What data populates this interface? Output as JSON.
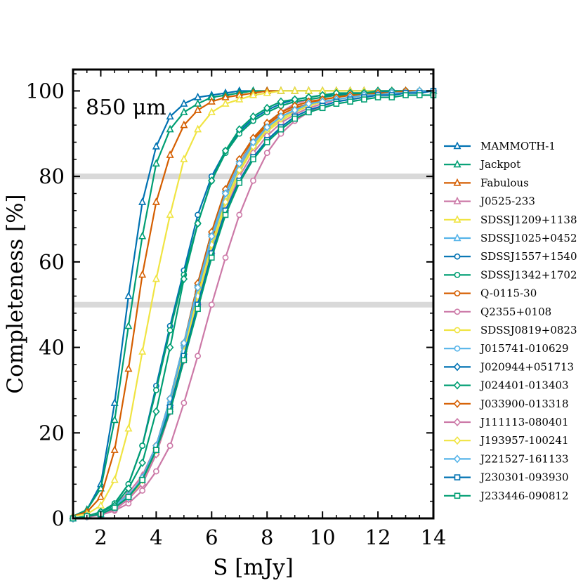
{
  "chart_data": {
    "type": "line",
    "title": "",
    "annotation": "850 μm",
    "xlabel": "S [mJy]",
    "ylabel": "Completeness [%]",
    "xlim": [
      1,
      14
    ],
    "ylim": [
      0,
      105
    ],
    "xticks": [
      2,
      4,
      6,
      8,
      10,
      12,
      14
    ],
    "yticks": [
      0,
      20,
      40,
      60,
      80,
      100
    ],
    "reference_lines_y": [
      50,
      80
    ],
    "legend_position": "right, outside",
    "x": [
      1.0,
      1.5,
      2.0,
      2.5,
      3.0,
      3.5,
      4.0,
      4.5,
      5.0,
      5.5,
      6.0,
      6.5,
      7.0,
      7.5,
      8.0,
      8.5,
      9.0,
      9.5,
      10.0,
      10.5,
      11.0,
      11.5,
      12.0,
      12.5,
      13.0,
      13.5,
      14.0
    ],
    "series": [
      {
        "name": "MAMMOTH-1",
        "color": "#0072B2",
        "marker": "triangle",
        "values": [
          0.5,
          2,
          8,
          27,
          52,
          74,
          87,
          94,
          97,
          98.5,
          99,
          99.5,
          100,
          100,
          100,
          100,
          100,
          100,
          100,
          100,
          100,
          100,
          100,
          100,
          100,
          100,
          100
        ]
      },
      {
        "name": "Jackpot",
        "color": "#009E73",
        "marker": "triangle",
        "values": [
          0.5,
          2,
          7,
          23,
          45,
          66,
          83,
          91,
          95,
          97,
          98.5,
          99,
          99.5,
          100,
          100,
          100,
          100,
          100,
          100,
          100,
          100,
          100,
          100,
          100,
          100,
          100,
          100
        ]
      },
      {
        "name": "Fabulous",
        "color": "#D55E00",
        "marker": "triangle",
        "values": [
          0.5,
          1.5,
          5,
          16,
          35,
          57,
          74,
          85,
          92,
          95.5,
          97.5,
          98.5,
          99,
          99.5,
          100,
          100,
          100,
          100,
          100,
          100,
          100,
          100,
          100,
          100,
          100,
          100,
          100
        ]
      },
      {
        "name": "J0525-233",
        "color": "#CC79A7",
        "marker": "triangle",
        "values": [
          0,
          0.5,
          1.5,
          3,
          6,
          10,
          17,
          27,
          39,
          52,
          64,
          74,
          82,
          88,
          92,
          95,
          97,
          98,
          98.5,
          99,
          99.5,
          99.5,
          100,
          100,
          100,
          100,
          100
        ]
      },
      {
        "name": "SDSSJ1209+1138",
        "color": "#F0E442",
        "marker": "triangle",
        "values": [
          0.5,
          1,
          3,
          9,
          21,
          39,
          56,
          71,
          84,
          91,
          95,
          97,
          98,
          99,
          99.5,
          100,
          100,
          100,
          100,
          100,
          100,
          100,
          100,
          100,
          100,
          100,
          100
        ]
      },
      {
        "name": "SDSSJ1025+0452",
        "color": "#56B4E9",
        "marker": "triangle",
        "values": [
          0,
          0.5,
          1,
          3,
          5.5,
          9,
          16,
          27,
          41,
          55,
          67,
          77,
          84,
          89,
          92.5,
          95,
          96.5,
          97.5,
          98,
          98.5,
          99,
          99,
          99.5,
          99.5,
          99.5,
          100,
          100
        ]
      },
      {
        "name": "SDSSJ1557+1540",
        "color": "#0072B2",
        "marker": "circle",
        "values": [
          0,
          0.5,
          1.5,
          3.5,
          8,
          17,
          31,
          45,
          58,
          71,
          80,
          86,
          90.5,
          93.5,
          95.5,
          97,
          98,
          98.5,
          99,
          99,
          99.5,
          99.5,
          99.5,
          100,
          100,
          100,
          100
        ]
      },
      {
        "name": "SDSSJ1342+1702",
        "color": "#009E73",
        "marker": "circle",
        "values": [
          0,
          0.5,
          1.5,
          3.5,
          8,
          17,
          30,
          44,
          57,
          69,
          79,
          85.5,
          90,
          93,
          95,
          96.5,
          97.5,
          98,
          98.5,
          99,
          99,
          99.5,
          99.5,
          99.5,
          100,
          100,
          100
        ]
      },
      {
        "name": "Q-0115-30",
        "color": "#D55E00",
        "marker": "circle",
        "values": [
          0,
          0.5,
          1,
          2.5,
          5,
          9,
          17,
          28,
          41,
          54,
          66,
          76,
          83,
          88.5,
          92,
          94.5,
          96,
          97,
          98,
          98.5,
          99,
          99,
          99.5,
          99.5,
          99.5,
          100,
          100
        ]
      },
      {
        "name": "Q2355+0108",
        "color": "#CC79A7",
        "marker": "circle",
        "values": [
          0,
          0.3,
          0.8,
          1.8,
          3.5,
          6.5,
          11,
          17,
          27,
          38,
          50,
          61,
          71,
          79,
          85.5,
          90,
          93,
          95,
          96.5,
          97.5,
          98,
          98.5,
          99,
          99,
          99.5,
          99.5,
          100
        ]
      },
      {
        "name": "SDSSJ0819+0823",
        "color": "#F0E442",
        "marker": "circle",
        "values": [
          0,
          0.5,
          1,
          2.5,
          5,
          8.5,
          15,
          25,
          38,
          51,
          63,
          73,
          81,
          86.5,
          90.5,
          93,
          95,
          96.5,
          97.5,
          98,
          98.5,
          99,
          99,
          99.5,
          99.5,
          100,
          100
        ]
      },
      {
        "name": "J015741-010629",
        "color": "#56B4E9",
        "marker": "circle",
        "values": [
          0,
          0.5,
          1,
          2.5,
          5,
          9,
          16,
          27,
          40,
          53,
          65,
          75,
          82,
          87.5,
          91,
          93.5,
          95.5,
          97,
          97.5,
          98,
          98.5,
          99,
          99,
          99.5,
          99.5,
          100,
          100
        ]
      },
      {
        "name": "J020944+051713",
        "color": "#0072B2",
        "marker": "diamond",
        "values": [
          0,
          0.5,
          1,
          2.5,
          5,
          9,
          16,
          26,
          39,
          52,
          64,
          74,
          81.5,
          87,
          91,
          93.5,
          95.5,
          96.5,
          97.5,
          98,
          98.5,
          99,
          99,
          99.5,
          99.5,
          100,
          100
        ]
      },
      {
        "name": "J024401-013403",
        "color": "#009E73",
        "marker": "diamond",
        "values": [
          0,
          0.5,
          1.5,
          3,
          7,
          13,
          25,
          40,
          56,
          69,
          79,
          86,
          91,
          94,
          96,
          97.5,
          98,
          98.5,
          99,
          99.5,
          99.5,
          99.5,
          100,
          100,
          100,
          100,
          100
        ]
      },
      {
        "name": "J033900-013318",
        "color": "#D55E00",
        "marker": "diamond",
        "values": [
          0,
          0.5,
          1,
          2.5,
          5,
          9.5,
          17,
          28,
          41,
          55,
          67,
          77,
          84,
          89,
          92.5,
          95,
          96.5,
          97.5,
          98,
          98.5,
          99,
          99,
          99.5,
          99.5,
          100,
          100,
          100
        ]
      },
      {
        "name": "J111113-080401",
        "color": "#CC79A7",
        "marker": "diamond",
        "values": [
          0,
          0.5,
          1,
          2,
          4.5,
          8,
          15,
          25,
          37,
          50,
          62,
          72,
          80,
          85.5,
          89.5,
          92.5,
          94.5,
          96,
          97,
          98,
          98.5,
          99,
          99,
          99.5,
          99.5,
          100,
          100
        ]
      },
      {
        "name": "J193957-100241",
        "color": "#F0E442",
        "marker": "diamond",
        "values": [
          0,
          0.5,
          1,
          2.5,
          5,
          9,
          16,
          26,
          39,
          52,
          64,
          74,
          81.5,
          87,
          91,
          93.5,
          95.5,
          96.5,
          97.5,
          98,
          98.5,
          99,
          99,
          99.5,
          99.5,
          100,
          100
        ]
      },
      {
        "name": "J221527-161133",
        "color": "#56B4E9",
        "marker": "diamond",
        "values": [
          0,
          0.5,
          1,
          2.5,
          5,
          9.5,
          17,
          28,
          41,
          54,
          66,
          76,
          83,
          88,
          91.5,
          94,
          95.5,
          97,
          97.5,
          98,
          98.5,
          99,
          99,
          99.5,
          99.5,
          100,
          100
        ]
      },
      {
        "name": "J230301-093930",
        "color": "#0072B2",
        "marker": "square",
        "values": [
          0,
          0.5,
          1,
          2.5,
          5,
          9,
          16,
          26,
          38,
          50,
          62,
          72,
          79,
          84.5,
          88.5,
          91.5,
          94,
          95.5,
          96.5,
          97.5,
          98,
          98.5,
          99,
          99,
          99.5,
          99.5,
          100
        ]
      },
      {
        "name": "J233446-090812",
        "color": "#009E73",
        "marker": "square",
        "values": [
          0,
          0.5,
          1,
          2.5,
          5,
          9,
          16,
          25,
          37,
          49,
          61,
          71,
          78.5,
          84,
          88,
          91,
          93.5,
          95,
          96,
          97,
          97.5,
          98,
          98.5,
          98.5,
          99,
          99,
          99
        ]
      }
    ]
  }
}
